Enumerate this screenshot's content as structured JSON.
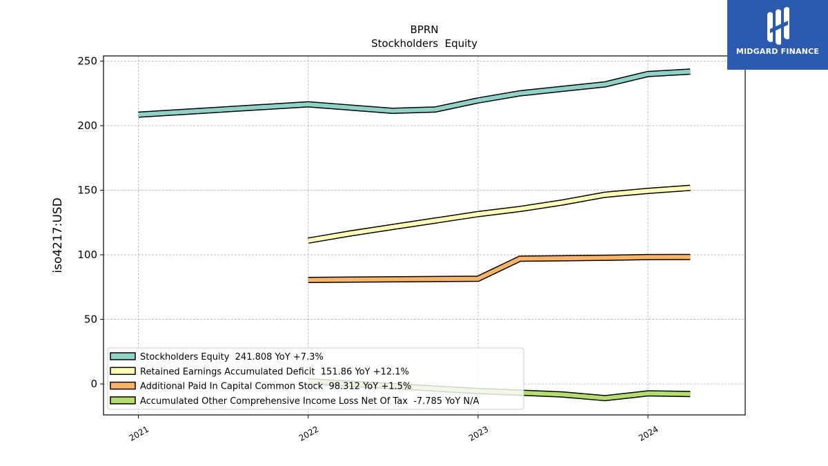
{
  "chart_data": {
    "type": "line",
    "title": "BPRN",
    "subtitle": "Stockholders  Equity",
    "ylabel": "iso4217:USD",
    "xlabel": "",
    "xlim": [
      "2020-10-18",
      "2024-07-28"
    ],
    "ylim": [
      -24,
      254
    ],
    "y_ticks": [
      0,
      50,
      100,
      150,
      200,
      250
    ],
    "x_ticks": [
      "2021",
      "2022",
      "2023",
      "2024"
    ],
    "grid": true,
    "legend_position": "lower-left",
    "series": [
      {
        "name": "Stockholders Equity  241.808 YoY +7.3%",
        "color": "#8dd3c7",
        "x": [
          "2021-01-01",
          "2022-01-01",
          "2022-04-01",
          "2022-07-01",
          "2022-10-01",
          "2023-01-01",
          "2023-04-01",
          "2023-07-01",
          "2023-10-01",
          "2024-01-01",
          "2024-04-01"
        ],
        "y": [
          208.5,
          216.5,
          214,
          211.5,
          212.5,
          219.5,
          225,
          228.5,
          232,
          240,
          241.8
        ]
      },
      {
        "name": "Retained Earnings Accumulated Deficit  151.86 YoY +12.1%",
        "color": "#ffffb3",
        "x": [
          "2022-01-01",
          "2022-04-01",
          "2022-07-01",
          "2022-10-01",
          "2023-01-01",
          "2023-04-01",
          "2023-07-01",
          "2023-10-01",
          "2024-01-01",
          "2024-04-01"
        ],
        "y": [
          111,
          116.5,
          121.5,
          126.5,
          131.5,
          135.5,
          140.5,
          146.5,
          149.5,
          151.86
        ]
      },
      {
        "name": "Additional Paid In Capital Common Stock  98.312 YoY +1.5%",
        "color": "#fdb462",
        "x": [
          "2022-01-01",
          "2023-01-01",
          "2023-04-01",
          "2023-07-01",
          "2023-10-01",
          "2024-01-01",
          "2024-04-01"
        ],
        "y": [
          80.5,
          81.5,
          97,
          97.3,
          97.7,
          98.2,
          98.312
        ]
      },
      {
        "name": "Accumulated Other Comprehensive Income Loss Net Of Tax  -7.785 YoY N/A",
        "color": "#b3de69",
        "x": [
          "2022-01-01",
          "2023-01-01",
          "2023-04-01",
          "2023-07-01",
          "2023-10-01",
          "2024-01-01",
          "2024-04-01"
        ],
        "y": [
          2,
          -5.5,
          -6.8,
          -8.2,
          -11,
          -7.3,
          -7.785
        ]
      }
    ]
  },
  "logo": {
    "text": "MIDGARD FINANCE",
    "background": "#2a5bb0"
  }
}
